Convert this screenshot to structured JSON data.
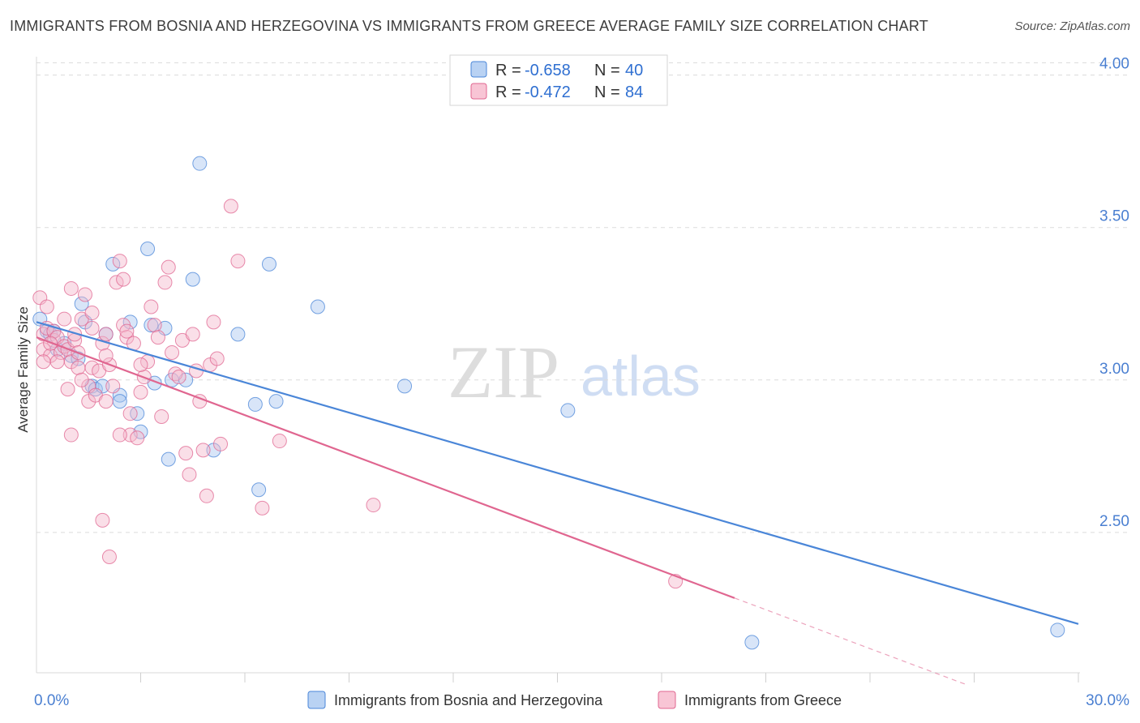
{
  "title": "IMMIGRANTS FROM BOSNIA AND HERZEGOVINA VS IMMIGRANTS FROM GREECE AVERAGE FAMILY SIZE CORRELATION CHART",
  "source": "Source: ZipAtlas.com",
  "watermark": {
    "zip": "ZIP",
    "atlas": "atlas"
  },
  "chart_data": {
    "type": "scatter",
    "ylabel": "Average Family Size",
    "xlabel": "",
    "xlim": [
      0,
      30
    ],
    "ylim": [
      2.04,
      4.06
    ],
    "x_tick_labels": [
      "0.0%",
      "30.0%"
    ],
    "y_ticks": [
      2.5,
      3.0,
      3.5,
      4.0
    ],
    "y_tick_labels": [
      "2.50",
      "3.00",
      "3.50",
      "4.00"
    ],
    "grid": true,
    "legend_position": "bottom",
    "stats_box": [
      {
        "r_label": "R =",
        "r": "-0.658",
        "n_label": "N =",
        "n": "40"
      },
      {
        "r_label": "R =",
        "r": "-0.472",
        "n_label": "N =",
        "n": "84"
      }
    ],
    "series": [
      {
        "name": "Immigrants from Bosnia and Herzegovina",
        "color": "#4a86d8",
        "fill": "#a9c6f0",
        "trend": {
          "x0": 0,
          "y0": 3.19,
          "x1": 30,
          "y1": 2.2,
          "dash_from": null
        },
        "points": [
          [
            0.1,
            3.2
          ],
          [
            0.3,
            3.16
          ],
          [
            0.4,
            3.15
          ],
          [
            0.5,
            3.16
          ],
          [
            0.6,
            3.1
          ],
          [
            0.8,
            3.12
          ],
          [
            1.0,
            3.08
          ],
          [
            1.2,
            3.07
          ],
          [
            1.3,
            3.25
          ],
          [
            1.4,
            3.19
          ],
          [
            1.6,
            2.98
          ],
          [
            1.7,
            2.97
          ],
          [
            1.9,
            2.98
          ],
          [
            2.0,
            3.15
          ],
          [
            2.2,
            3.38
          ],
          [
            2.4,
            2.95
          ],
          [
            2.4,
            2.93
          ],
          [
            2.7,
            3.19
          ],
          [
            2.9,
            2.89
          ],
          [
            3.0,
            2.83
          ],
          [
            3.2,
            3.43
          ],
          [
            3.3,
            3.18
          ],
          [
            3.4,
            2.99
          ],
          [
            3.7,
            3.17
          ],
          [
            3.8,
            2.74
          ],
          [
            3.9,
            3.0
          ],
          [
            4.3,
            3.0
          ],
          [
            4.5,
            3.33
          ],
          [
            4.7,
            3.71
          ],
          [
            5.1,
            2.77
          ],
          [
            5.8,
            3.15
          ],
          [
            6.3,
            2.92
          ],
          [
            6.4,
            2.64
          ],
          [
            6.7,
            3.38
          ],
          [
            6.9,
            2.93
          ],
          [
            8.1,
            3.24
          ],
          [
            10.6,
            2.98
          ],
          [
            15.3,
            2.9
          ],
          [
            20.6,
            2.14
          ],
          [
            29.4,
            2.18
          ]
        ]
      },
      {
        "name": "Immigrants from Greece",
        "color": "#e06690",
        "fill": "#f5b8cc",
        "trend": {
          "x0": 0,
          "y0": 3.14,
          "x1": 26.8,
          "y1": 2.0,
          "dash_from": 20.1
        },
        "points": [
          [
            0.1,
            3.27
          ],
          [
            0.2,
            3.15
          ],
          [
            0.2,
            3.1
          ],
          [
            0.3,
            3.24
          ],
          [
            0.3,
            3.17
          ],
          [
            0.4,
            3.08
          ],
          [
            0.5,
            3.13
          ],
          [
            0.5,
            3.16
          ],
          [
            0.6,
            3.14
          ],
          [
            0.7,
            3.09
          ],
          [
            0.8,
            3.11
          ],
          [
            0.9,
            3.1
          ],
          [
            0.9,
            2.97
          ],
          [
            1.0,
            3.06
          ],
          [
            1.0,
            3.3
          ],
          [
            1.1,
            3.13
          ],
          [
            1.2,
            3.04
          ],
          [
            1.2,
            3.09
          ],
          [
            1.3,
            3.2
          ],
          [
            1.4,
            3.28
          ],
          [
            1.5,
            2.98
          ],
          [
            1.5,
            2.93
          ],
          [
            1.6,
            3.04
          ],
          [
            1.6,
            3.22
          ],
          [
            1.7,
            2.95
          ],
          [
            1.8,
            3.03
          ],
          [
            1.9,
            3.12
          ],
          [
            2.0,
            2.93
          ],
          [
            2.0,
            3.15
          ],
          [
            2.1,
            3.05
          ],
          [
            2.2,
            2.98
          ],
          [
            2.3,
            3.32
          ],
          [
            2.4,
            3.39
          ],
          [
            2.5,
            3.33
          ],
          [
            2.5,
            3.18
          ],
          [
            2.6,
            3.14
          ],
          [
            2.6,
            3.16
          ],
          [
            2.7,
            2.82
          ],
          [
            2.8,
            3.12
          ],
          [
            2.9,
            2.81
          ],
          [
            3.0,
            2.96
          ],
          [
            3.1,
            3.01
          ],
          [
            3.2,
            3.06
          ],
          [
            3.3,
            3.24
          ],
          [
            3.4,
            3.18
          ],
          [
            3.5,
            3.14
          ],
          [
            3.6,
            2.88
          ],
          [
            3.7,
            3.32
          ],
          [
            3.8,
            3.37
          ],
          [
            3.9,
            3.09
          ],
          [
            4.0,
            3.02
          ],
          [
            4.1,
            3.01
          ],
          [
            4.2,
            3.13
          ],
          [
            4.3,
            2.76
          ],
          [
            4.4,
            2.69
          ],
          [
            4.5,
            3.15
          ],
          [
            4.6,
            3.03
          ],
          [
            4.7,
            2.93
          ],
          [
            4.8,
            2.77
          ],
          [
            4.9,
            2.62
          ],
          [
            5.0,
            3.05
          ],
          [
            5.1,
            3.19
          ],
          [
            5.2,
            3.07
          ],
          [
            5.3,
            2.79
          ],
          [
            5.6,
            3.57
          ],
          [
            5.8,
            3.39
          ],
          [
            6.5,
            2.58
          ],
          [
            7.0,
            2.8
          ],
          [
            9.7,
            2.59
          ],
          [
            1.9,
            2.54
          ],
          [
            2.1,
            2.42
          ],
          [
            1.0,
            2.82
          ],
          [
            2.4,
            2.82
          ],
          [
            18.4,
            2.34
          ],
          [
            0.6,
            3.06
          ],
          [
            1.3,
            3.0
          ],
          [
            2.0,
            3.08
          ],
          [
            0.8,
            3.2
          ],
          [
            1.6,
            3.17
          ],
          [
            3.0,
            3.05
          ],
          [
            0.4,
            3.12
          ],
          [
            1.1,
            3.15
          ],
          [
            0.2,
            3.06
          ],
          [
            2.7,
            2.89
          ]
        ]
      }
    ]
  }
}
